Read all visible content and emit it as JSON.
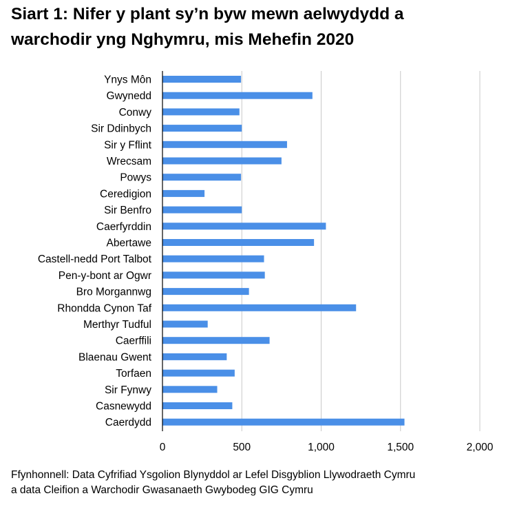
{
  "title_lines": [
    "Siart 1: Nifer y plant sy’n byw mewn aelwydydd a",
    "warchodir yng Nghymru, mis Mehefin 2020"
  ],
  "source_lines": [
    "Ffynhonnell: Data Cyfrifiad Ysgolion Blynyddol ar Lefel Disgyblion Llywodraeth Cymru",
    "a data Cleifion a Warchodir Gwasanaeth Gwybodeg GIG Cymru"
  ],
  "chart_data": {
    "type": "bar",
    "orientation": "horizontal",
    "title": "Siart 1: Nifer y plant sy’n byw mewn aelwydydd a warchodir yng Nghymru, mis Mehefin 2020",
    "xlabel": "",
    "ylabel": "",
    "categories": [
      "Ynys Môn",
      "Gwynedd",
      "Conwy",
      "Sir Ddinbych",
      "Sir y Fflint",
      "Wrecsam",
      "Powys",
      "Ceredigion",
      "Sir Benfro",
      "Caerfyrddin",
      "Abertawe",
      "Castell-nedd Port Talbot",
      "Pen-y-bont ar Ogwr",
      "Bro Morgannwg",
      "Rhondda Cynon Taf",
      "Merthyr Tudful",
      "Caerffili",
      "Blaenau Gwent",
      "Torfaen",
      "Sir Fynwy",
      "Casnewydd",
      "Caerdydd"
    ],
    "values": [
      495,
      945,
      485,
      500,
      785,
      750,
      495,
      265,
      500,
      1030,
      955,
      640,
      645,
      545,
      1220,
      285,
      675,
      405,
      455,
      345,
      440,
      1525
    ],
    "xlim": [
      0,
      2000
    ],
    "x_ticks": [
      0,
      500,
      1000,
      1500,
      2000
    ],
    "x_tick_labels": [
      "0",
      "500",
      "1,000",
      "1,500",
      "2,000"
    ],
    "grid": "vertical",
    "legend": "none",
    "bar_color": "#4a8fe7",
    "grid_color": "#c8c8c8"
  }
}
